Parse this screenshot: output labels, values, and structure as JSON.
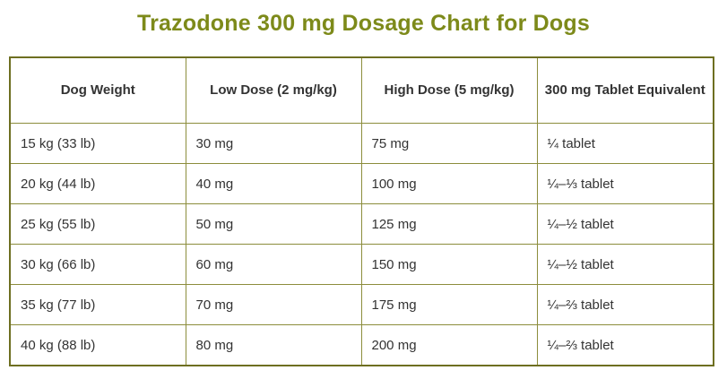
{
  "title": "Trazodone 300 mg Dosage Chart for Dogs",
  "table": {
    "headers": [
      "Dog Weight",
      "Low Dose (2 mg/kg)",
      "High Dose (5 mg/kg)",
      "300 mg Tablet Equivalent"
    ],
    "rows": [
      [
        "15 kg (33 lb)",
        "30 mg",
        "75 mg",
        "¼ tablet"
      ],
      [
        "20 kg (44 lb)",
        "40 mg",
        "100 mg",
        "¼–⅓ tablet"
      ],
      [
        "25 kg (55 lb)",
        "50 mg",
        "125 mg",
        "¼–½ tablet"
      ],
      [
        "30 kg (66 lb)",
        "60 mg",
        "150 mg",
        "¼–½ tablet"
      ],
      [
        "35 kg (77 lb)",
        "70 mg",
        "175 mg",
        "¼–⅔ tablet"
      ],
      [
        "40 kg (88 lb)",
        "80 mg",
        "200 mg",
        "¼–⅔ tablet"
      ]
    ]
  },
  "colors": {
    "title": "#7d8a1a",
    "border": "#6e6f21",
    "text": "#333333"
  }
}
